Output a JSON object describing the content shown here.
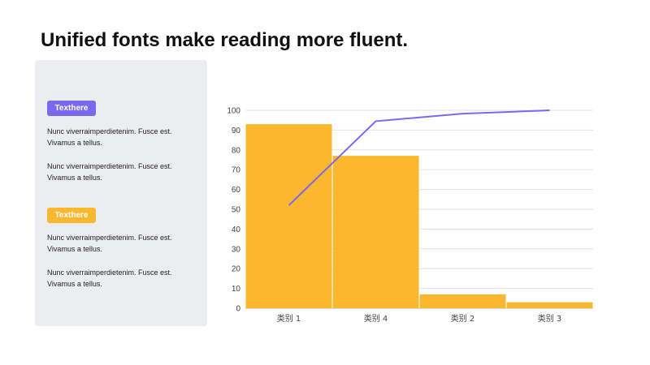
{
  "slide": {
    "title": "Unified fonts make reading more fluent."
  },
  "panel": {
    "sections": [
      {
        "badge": "Texthere",
        "badge_color": "#7b68ee",
        "paragraphs": [
          "Nunc viverraimperdietenim. Fusce est. Vivamus a tellus.",
          "Nunc viverraimperdietenim. Fusce est. Vivamus a tellus."
        ]
      },
      {
        "badge": "Texthere",
        "badge_color": "#fbb82e",
        "paragraphs": [
          "Nunc viverraimperdietenim. Fusce est. Vivamus a tellus.",
          "Nunc viverraimperdietenim. Fusce est. Vivamus a tellus."
        ]
      }
    ]
  },
  "chart_data": {
    "type": "bar",
    "categories": [
      "类别 1",
      "类别 4",
      "类别 2",
      "类别 3"
    ],
    "series": [
      {
        "type": "bar",
        "values": [
          93,
          77,
          7,
          3
        ],
        "color": "#fbb82e"
      },
      {
        "type": "line",
        "values": [
          52,
          94.5,
          98.3,
          100
        ],
        "color": "#7b68ee"
      }
    ],
    "ylim": [
      0,
      100
    ],
    "yticks": [
      0,
      10,
      20,
      30,
      40,
      50,
      60,
      70,
      80,
      90,
      100
    ],
    "grid": true,
    "legend": "none",
    "title": "",
    "xlabel": "",
    "ylabel": ""
  }
}
